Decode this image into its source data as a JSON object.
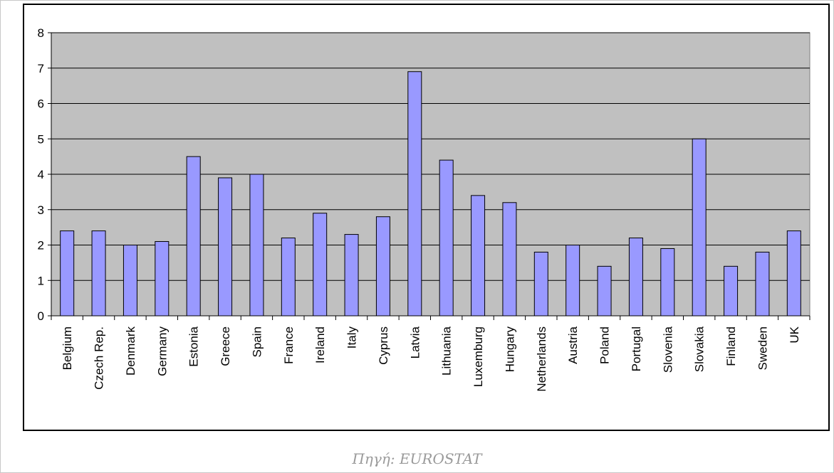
{
  "source_note": "Πηγή: EUROSTAT",
  "colors": {
    "plot_background": "#c0c0c0",
    "bar_fill": "#9999ff",
    "bar_stroke": "#000000",
    "gridline": "#000000"
  },
  "chart_data": {
    "type": "bar",
    "title": "",
    "xlabel": "",
    "ylabel": "",
    "ylim": [
      0,
      8
    ],
    "yticks": [
      0,
      1,
      2,
      3,
      4,
      5,
      6,
      7,
      8
    ],
    "grid": true,
    "legend": "none",
    "categories": [
      "Belgium",
      "Czech Rep.",
      "Denmark",
      "Germany",
      "Estonia",
      "Greece",
      "Spain",
      "France",
      "Ireland",
      "Italy",
      "Cyprus",
      "Latvia",
      "Lithuania",
      "Luxemburg",
      "Hungary",
      "Netherlands",
      "Austria",
      "Poland",
      "Portugal",
      "Slovenia",
      "Slovakia",
      "Finland",
      "Sweden",
      "UK"
    ],
    "values": [
      2.4,
      2.4,
      2.0,
      2.1,
      4.5,
      3.9,
      4.0,
      2.2,
      2.9,
      2.3,
      2.8,
      6.9,
      4.4,
      3.4,
      3.2,
      1.8,
      2.0,
      1.4,
      2.2,
      1.9,
      5.0,
      1.4,
      1.8,
      2.4
    ]
  }
}
